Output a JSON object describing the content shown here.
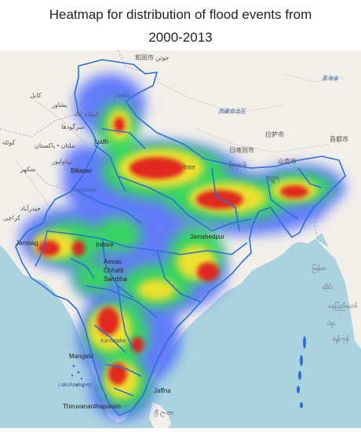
{
  "title_line1": "Heatmap for distribution of flood events from",
  "title_line2": "2000-2013",
  "colors": {
    "sea": "#aad3df",
    "land": "#f2efe9",
    "boundary": "#2a6fdb",
    "heat_low": "#3b5bff",
    "heat_mid": "#22dd44",
    "heat_warm": "#f4e01c",
    "heat_high": "#e01010"
  },
  "labels": {
    "hotan": "和田市 جوتن",
    "qinghai": "青海省",
    "ladakh_sub": "Ladak",
    "kabul": "کابل",
    "peshawar": "پشاور",
    "islamabad": "اسلام آباد",
    "quetta": "کوئٹہ",
    "sargodha": "سرگودھا",
    "multan": "ملتان • پاکستان",
    "bahawalpur": "بہاولپور",
    "sukkur": "سکھر",
    "hyderabad": "حیدرآباد",
    "karachi": "کراچی",
    "pakistan_small": "پاکستان",
    "ludhiana": "Ludh",
    "bikaner": "Bikaner",
    "rajasthan": "Rajasthan",
    "jamnagar": "Jamnag",
    "indore": "Indore",
    "amravati": "Amrav",
    "chhattisgarh": "Chhatti",
    "sambhal": "Sambha",
    "mangaluru": "Mangalu",
    "karnataka": "Karnataka",
    "lakshadweep": "Lakshadweep",
    "thiruvananthapuram": "Thiruvananthapuram",
    "jaffna": "Jaffna",
    "srilanka": "ශ්‍රී ලංකා",
    "jamshedpur": "Jamshedpur",
    "xizang": "西藏自治区",
    "lhasa": "拉萨市",
    "nyingchi": "昌都市",
    "shigatse": "日喀则市",
    "tsang": "ཤིགས་རྩེ",
    "lhoka": "山南市",
    "nepal_hi": "नेपाल",
    "bhutan": "འབྲུག",
    "myanmar1": "မြန်မာ",
    "myanmar2": "ထိုင်း",
    "yangon": "ရန်ကုန်",
    "bago": "ပဲခူး",
    "naypyi": "နေပြည်တော်",
    "bay_label": "ကော"
  }
}
